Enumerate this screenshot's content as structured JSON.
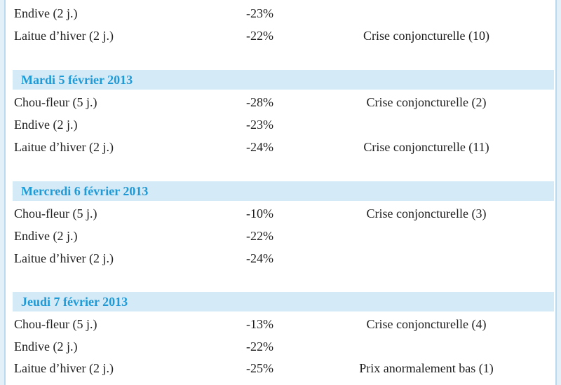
{
  "top_rows": [
    {
      "product": "Endive (2 j.)",
      "pct": "-23%",
      "status": ""
    },
    {
      "product": "Laitue d’hiver (2 j.)",
      "pct": "-22%",
      "status": "Crise conjoncturelle (10)"
    }
  ],
  "days": [
    {
      "header": "Mardi 5 février 2013",
      "rows": [
        {
          "product": "Chou-fleur (5 j.)",
          "pct": "-28%",
          "status": "Crise conjoncturelle (2)"
        },
        {
          "product": "Endive (2 j.)",
          "pct": "-23%",
          "status": ""
        },
        {
          "product": "Laitue d’hiver (2 j.)",
          "pct": "-24%",
          "status": "Crise conjoncturelle (11)"
        }
      ]
    },
    {
      "header": "Mercredi 6 février 2013",
      "rows": [
        {
          "product": "Chou-fleur (5 j.)",
          "pct": "-10%",
          "status": "Crise conjoncturelle (3)"
        },
        {
          "product": "Endive (2 j.)",
          "pct": "-22%",
          "status": ""
        },
        {
          "product": "Laitue d’hiver (2 j.)",
          "pct": "-24%",
          "status": ""
        }
      ]
    },
    {
      "header": "Jeudi 7 février 2013",
      "rows": [
        {
          "product": "Chou-fleur (5 j.)",
          "pct": "-13%",
          "status": "Crise conjoncturelle (4)"
        },
        {
          "product": "Endive (2 j.)",
          "pct": "-22%",
          "status": ""
        },
        {
          "product": "Laitue d’hiver (2 j.)",
          "pct": "-25%",
          "status": "Prix anormalement bas (1)"
        }
      ]
    }
  ]
}
